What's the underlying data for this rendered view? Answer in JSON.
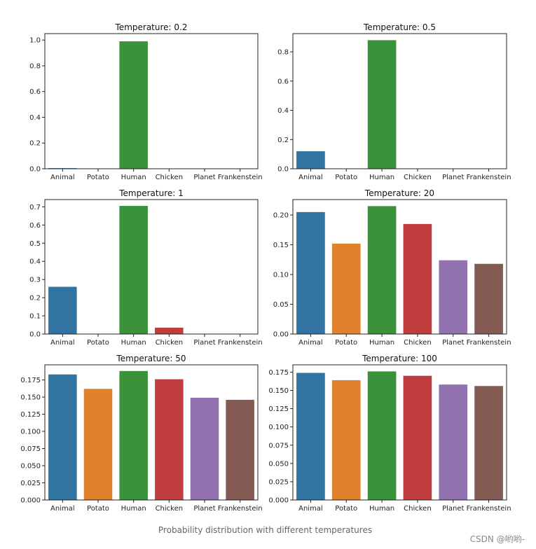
{
  "figure": {
    "caption": "Probability distribution with different temperatures",
    "watermark": "CSDN @哟哟-"
  },
  "colors": [
    "#3274a1",
    "#e1812c",
    "#3a923a",
    "#c03d3e",
    "#9372b2",
    "#845b53"
  ],
  "chart_data": [
    {
      "type": "bar",
      "title": "Temperature: 0.2",
      "categories": [
        "Animal",
        "Potato",
        "Human",
        "Chicken",
        "Planet",
        "Frankenstein"
      ],
      "values": [
        0.005,
        0.0,
        0.99,
        0.0,
        0.0,
        0.0
      ],
      "ylim": [
        0,
        1.05
      ],
      "yticks": [
        0.0,
        0.2,
        0.4,
        0.6,
        0.8,
        1.0
      ],
      "tick_labels": [
        "0.0",
        "0.2",
        "0.4",
        "0.6",
        "0.8",
        "1.0"
      ],
      "xlabel": "",
      "ylabel": ""
    },
    {
      "type": "bar",
      "title": "Temperature: 0.5",
      "categories": [
        "Animal",
        "Potato",
        "Human",
        "Chicken",
        "Planet",
        "Frankenstein"
      ],
      "values": [
        0.12,
        0.0,
        0.88,
        0.0,
        0.0,
        0.0
      ],
      "ylim": [
        0,
        0.925
      ],
      "yticks": [
        0.0,
        0.2,
        0.4,
        0.6,
        0.8
      ],
      "tick_labels": [
        "0.0",
        "0.2",
        "0.4",
        "0.6",
        "0.8"
      ],
      "xlabel": "",
      "ylabel": ""
    },
    {
      "type": "bar",
      "title": "Temperature: 1",
      "categories": [
        "Animal",
        "Potato",
        "Human",
        "Chicken",
        "Planet",
        "Frankenstein"
      ],
      "values": [
        0.26,
        0.0,
        0.705,
        0.035,
        0.0,
        0.0
      ],
      "ylim": [
        0,
        0.74
      ],
      "yticks": [
        0.0,
        0.1,
        0.2,
        0.3,
        0.4,
        0.5,
        0.6,
        0.7
      ],
      "tick_labels": [
        "0.0",
        "0.1",
        "0.2",
        "0.3",
        "0.4",
        "0.5",
        "0.6",
        "0.7"
      ],
      "xlabel": "",
      "ylabel": ""
    },
    {
      "type": "bar",
      "title": "Temperature: 20",
      "categories": [
        "Animal",
        "Potato",
        "Human",
        "Chicken",
        "Planet",
        "Frankenstein"
      ],
      "values": [
        0.205,
        0.152,
        0.215,
        0.185,
        0.124,
        0.118
      ],
      "ylim": [
        0,
        0.226
      ],
      "yticks": [
        0.0,
        0.05,
        0.1,
        0.15,
        0.2
      ],
      "tick_labels": [
        "0.00",
        "0.05",
        "0.10",
        "0.15",
        "0.20"
      ],
      "xlabel": "",
      "ylabel": ""
    },
    {
      "type": "bar",
      "title": "Temperature: 50",
      "categories": [
        "Animal",
        "Potato",
        "Human",
        "Chicken",
        "Planet",
        "Frankenstein"
      ],
      "values": [
        0.183,
        0.162,
        0.188,
        0.176,
        0.149,
        0.146
      ],
      "ylim": [
        0,
        0.197
      ],
      "yticks": [
        0.0,
        0.025,
        0.05,
        0.075,
        0.1,
        0.125,
        0.15,
        0.175
      ],
      "tick_labels": [
        "0.000",
        "0.025",
        "0.050",
        "0.075",
        "0.100",
        "0.125",
        "0.150",
        "0.175"
      ],
      "xlabel": "",
      "ylabel": ""
    },
    {
      "type": "bar",
      "title": "Temperature: 100",
      "categories": [
        "Animal",
        "Potato",
        "Human",
        "Chicken",
        "Planet",
        "Frankenstein"
      ],
      "values": [
        0.174,
        0.164,
        0.176,
        0.17,
        0.158,
        0.156
      ],
      "ylim": [
        0,
        0.185
      ],
      "yticks": [
        0.0,
        0.025,
        0.05,
        0.075,
        0.1,
        0.125,
        0.15,
        0.175
      ],
      "tick_labels": [
        "0.000",
        "0.025",
        "0.050",
        "0.075",
        "0.100",
        "0.125",
        "0.150",
        "0.175"
      ],
      "xlabel": "",
      "ylabel": ""
    }
  ]
}
